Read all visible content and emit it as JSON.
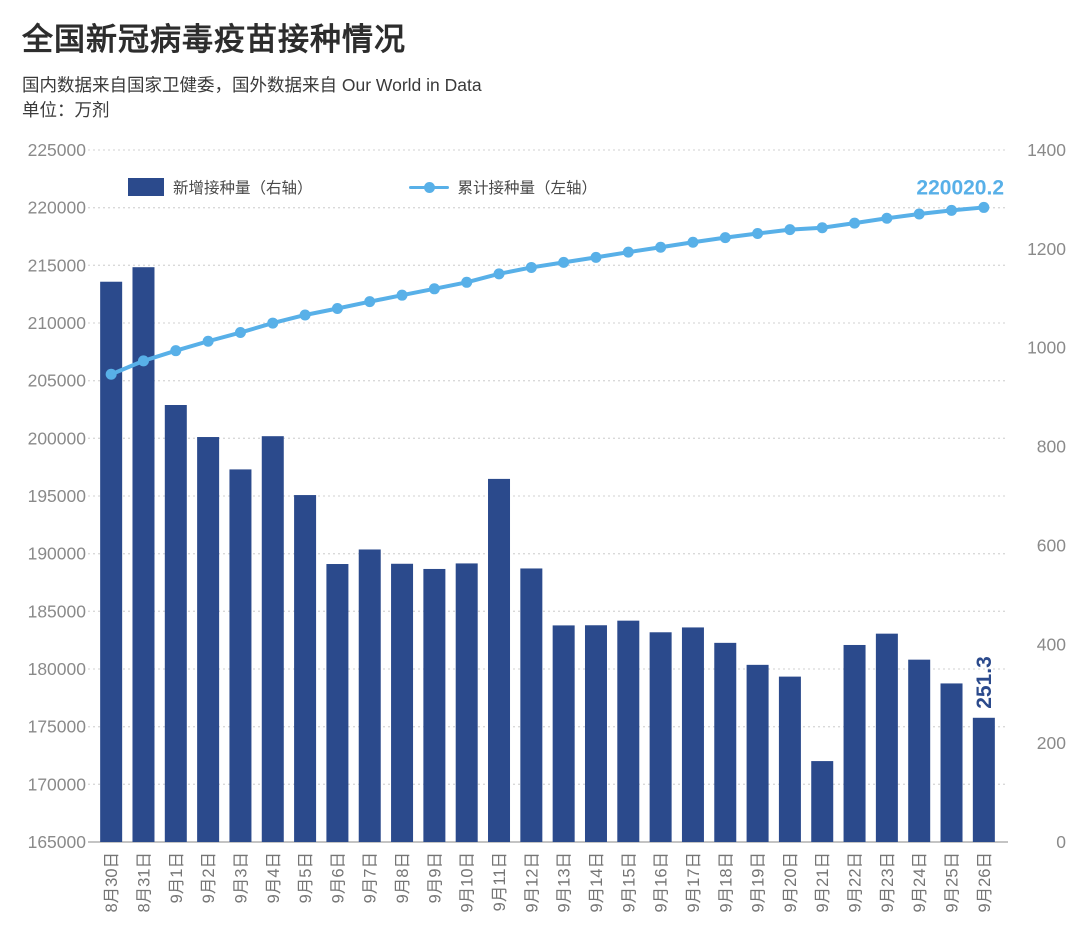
{
  "header": {
    "title": "全国新冠病毒疫苗接种情况",
    "subtitle": "国内数据来自国家卫健委，国外数据来自 Our World in Data",
    "unit_line": "单位：万剂"
  },
  "legend": {
    "bar_label": "新增接种量（右轴）",
    "line_label": "累计接种量（左轴）"
  },
  "colors": {
    "bar": "#2b4a8c",
    "line": "#58b0e8",
    "title_text": "#2d2d2d",
    "axis_text": "#8a8a8a",
    "x_axis_text": "#757575",
    "gridline": "#d9d9d9",
    "axis_line": "#b0b0b0",
    "background": "#ffffff"
  },
  "chart_data": {
    "type": "bar",
    "subtype": "dual-axis bar+line combo",
    "grid": "horizontal dotted gridlines on",
    "legend_position": "top-left inside plot",
    "categories": [
      "8月30日",
      "8月31日",
      "9月1日",
      "9月2日",
      "9月3日",
      "9月4日",
      "9月5日",
      "9月6日",
      "9月7日",
      "9月8日",
      "9月9日",
      "9月10日",
      "9月11日",
      "9月12日",
      "9月13日",
      "9月14日",
      "9月15日",
      "9月16日",
      "9月17日",
      "9月18日",
      "9月19日",
      "9月20日",
      "9月21日",
      "9月22日",
      "9月23日",
      "9月24日",
      "9月25日",
      "9月26日"
    ],
    "series": [
      {
        "name": "新增接种量（右轴）",
        "type": "bar",
        "axis": "right",
        "color": "#2b4a8c",
        "values": [
          1133.5,
          1162.9,
          884.1,
          819.3,
          753.8,
          821.0,
          701.9,
          562.4,
          591.8,
          562.9,
          552.4,
          563.6,
          734.6,
          553.4,
          438.2,
          438.5,
          447.8,
          424.3,
          434.1,
          402.9,
          358.4,
          334.6,
          163.7,
          398.6,
          421.5,
          368.9,
          320.8,
          251.3
        ]
      },
      {
        "name": "累计接种量（左轴）",
        "type": "line",
        "axis": "left",
        "color": "#58b0e8",
        "values": [
          205552.5,
          206715.4,
          207599.5,
          208418.8,
          209172.6,
          209993.6,
          210695.5,
          211257.9,
          211849.7,
          212412.6,
          212965.0,
          213528.6,
          214263.2,
          214816.6,
          215254.8,
          215693.3,
          216141.1,
          216565.4,
          216999.5,
          217402.4,
          217760.8,
          218095.4,
          218259.1,
          218657.7,
          219079.2,
          219448.1,
          219768.9,
          220020.2
        ]
      }
    ],
    "left_axis": {
      "min": 165000,
      "max": 225000,
      "step": 5000,
      "tick_labels": [
        "225000",
        "220000",
        "215000",
        "210000",
        "205000",
        "200000",
        "195000",
        "190000",
        "185000",
        "180000",
        "175000",
        "170000",
        "165000"
      ]
    },
    "right_axis": {
      "min": 0,
      "max": 1400,
      "step": 200,
      "tick_labels": [
        "1400",
        "1200",
        "1000",
        "800",
        "600",
        "400",
        "200",
        "0"
      ]
    },
    "annotations": [
      {
        "text": "220020.2",
        "target": "last point of cumulative line",
        "color": "#58b0e8",
        "rotated": false
      },
      {
        "text": "251.3",
        "target": "last bar (9月26日)",
        "color": "#2b4a8c",
        "rotated": true
      }
    ]
  }
}
